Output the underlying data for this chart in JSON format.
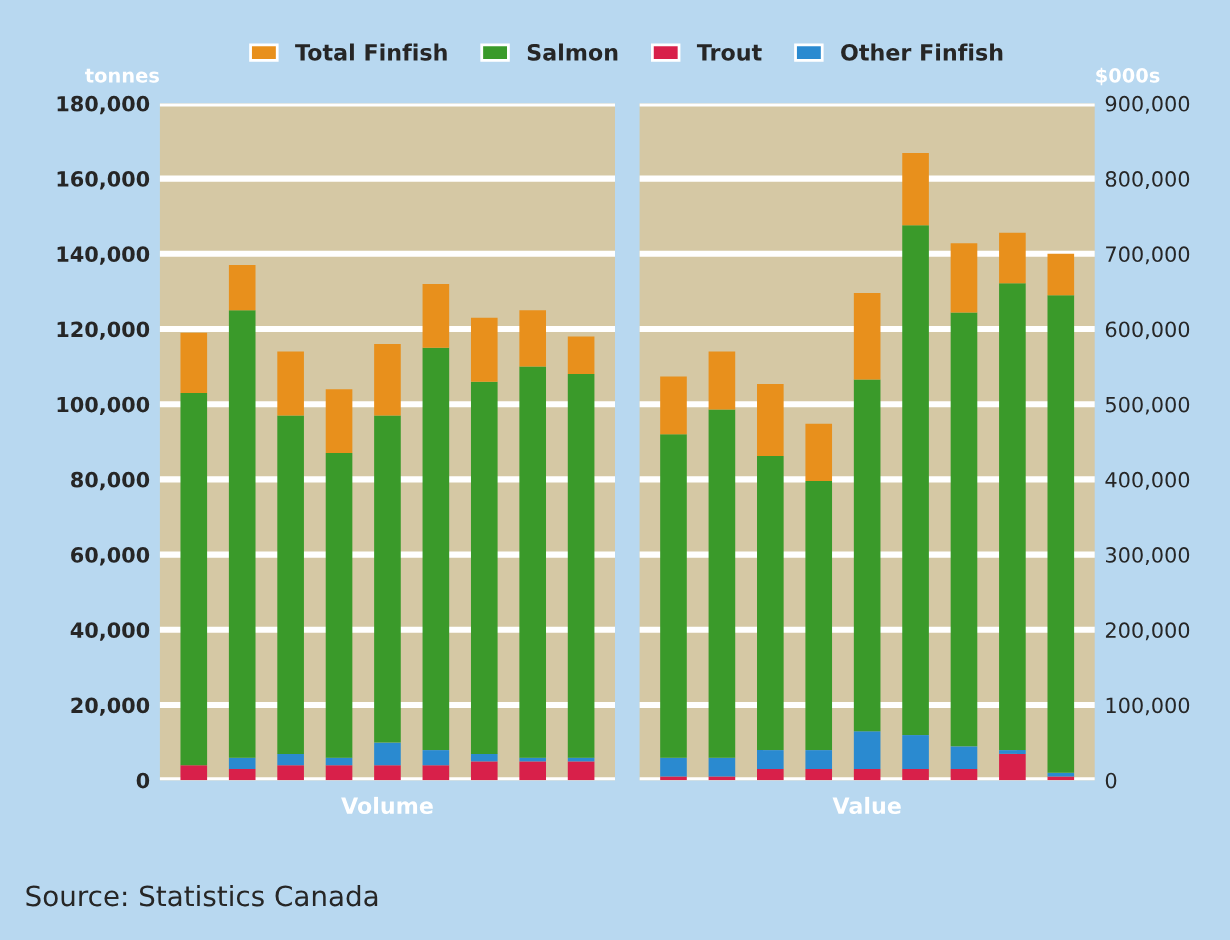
{
  "chart_data": [
    {
      "type": "bar",
      "stacked": true,
      "xlabel": "Volume",
      "ylabel": "tonnes",
      "categories": [
        null,
        null,
        null,
        null,
        null,
        null,
        null,
        null,
        null
      ],
      "series": [
        {
          "name": "Trout",
          "color": "#d8204a",
          "values": [
            4000,
            3000,
            4000,
            4000,
            4000,
            4000,
            5000,
            5000,
            5000
          ]
        },
        {
          "name": "Other Finfish",
          "color": "#2a8ad0",
          "values": [
            0,
            3000,
            3000,
            2000,
            6000,
            4000,
            2000,
            1000,
            1000
          ]
        },
        {
          "name": "Salmon",
          "color": "#3a9a2a",
          "values": [
            99000,
            119000,
            90000,
            81000,
            87000,
            107000,
            99000,
            104000,
            102000
          ]
        },
        {
          "name": "Total Finfish",
          "color": "#e8901c",
          "values": [
            16000,
            12000,
            17000,
            17000,
            19000,
            17000,
            17000,
            15000,
            10000
          ]
        }
      ],
      "ylim": [
        0,
        180000
      ],
      "yticks": [
        {
          "value": 0,
          "label": "0"
        },
        {
          "value": 20000,
          "label": "20,000"
        },
        {
          "value": 40000,
          "label": "40,000"
        },
        {
          "value": 60000,
          "label": "60,000"
        },
        {
          "value": 80000,
          "label": "80,000"
        },
        {
          "value": 100000,
          "label": "100,000"
        },
        {
          "value": 120000,
          "label": "120,000"
        },
        {
          "value": 140000,
          "label": "140,000"
        },
        {
          "value": 160000,
          "label": "160,000"
        },
        {
          "value": 180000,
          "label": "180,000"
        }
      ],
      "grid": "y",
      "legend": "top",
      "tick_labels": "y",
      "annotations": [
        "Source: Statistics Canada"
      ]
    },
    {
      "type": "bar",
      "stacked": true,
      "xlabel": "Value",
      "ylabel": "$000s",
      "categories": [
        null,
        null,
        null,
        null,
        null,
        null,
        null,
        null,
        null
      ],
      "series": [
        {
          "color": "#d8204a",
          "values": [
            5000,
            5000,
            15000,
            15000,
            15000,
            15000,
            15000,
            35000,
            5000
          ]
        },
        {
          "color": "#2a8ad0",
          "values": [
            25000,
            25000,
            25000,
            25000,
            50000,
            45000,
            30000,
            5000,
            5000
          ]
        },
        {
          "color": "#3a9a2a",
          "values": [
            430000,
            463000,
            391000,
            358000,
            468000,
            678000,
            577000,
            621000,
            635000
          ]
        },
        {
          "color": "#e8901c",
          "values": [
            77000,
            77000,
            96000,
            76000,
            115000,
            96000,
            92000,
            67000,
            55000
          ]
        }
      ],
      "ylim": [
        0,
        900000
      ],
      "yticks": [
        {
          "value": 0,
          "label": "0"
        },
        {
          "value": 100000,
          "label": "100,000"
        },
        {
          "value": 200000,
          "label": "200,000"
        },
        {
          "value": 300000,
          "label": "300,000"
        },
        {
          "value": 400000,
          "label": "400,000"
        },
        {
          "value": 500000,
          "label": "500,000"
        },
        {
          "value": 600000,
          "label": "600,000"
        },
        {
          "value": 700000,
          "label": "700,000"
        },
        {
          "value": 800000,
          "label": "800,000"
        },
        {
          "value": 900000,
          "label": "900,000"
        }
      ],
      "grid": "y",
      "tick_labels": "y"
    }
  ]
}
